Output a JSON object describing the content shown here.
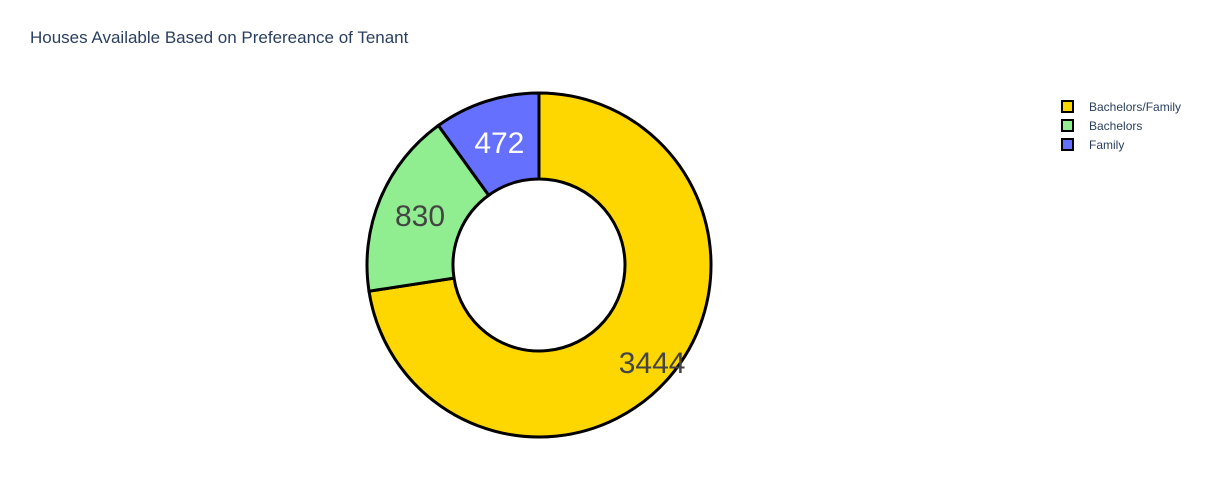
{
  "chart_data": {
    "type": "pie",
    "hole": true,
    "title": "Houses Available Based on Prefereance of Tenant",
    "slices": [
      {
        "label": "Bachelors/Family",
        "value": 3444,
        "color": "#FFD700",
        "text_color": "#444444"
      },
      {
        "label": "Bachelors",
        "value": 830,
        "color": "#90EE90",
        "text_color": "#444444"
      },
      {
        "label": "Family",
        "value": 472,
        "color": "#6670FF",
        "text_color": "#ffffff"
      }
    ],
    "legend": {
      "position": "top-right",
      "items": [
        "Bachelors/Family",
        "Bachelors",
        "Family"
      ]
    },
    "slice_border_color": "#000000"
  }
}
